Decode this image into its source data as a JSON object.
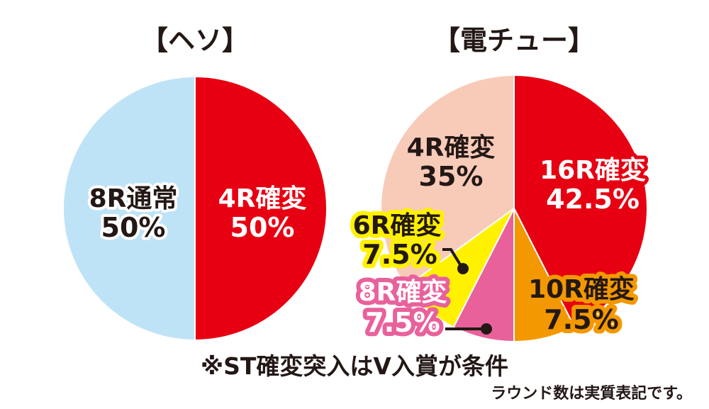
{
  "chart_data": [
    {
      "type": "pie",
      "title": "【ヘソ】",
      "slices": [
        {
          "label": "4R確変",
          "value": 50,
          "value_label": "50%",
          "color": "#e60012",
          "text_color": "#ffffff"
        },
        {
          "label": "8R通常",
          "value": 50,
          "value_label": "50%",
          "color": "#bfe3f6",
          "text_color": "#231815"
        }
      ]
    },
    {
      "type": "pie",
      "title": "【電チュー】",
      "slices": [
        {
          "label": "16R確変",
          "value": 42.5,
          "value_label": "42.5%",
          "color": "#e60012",
          "text_color": "#ffffff"
        },
        {
          "label": "10R確変",
          "value": 7.5,
          "value_label": "7.5%",
          "color": "#f39800",
          "text_color": "#231815"
        },
        {
          "label": "8R確変",
          "value": 7.5,
          "value_label": "7.5%",
          "color": "#e9619b",
          "text_color": "#ffffff"
        },
        {
          "label": "6R確変",
          "value": 7.5,
          "value_label": "7.5%",
          "color": "#fff100",
          "text_color": "#231815"
        },
        {
          "label": "4R確変",
          "value": 35,
          "value_label": "35%",
          "color": "#f8cbb9",
          "text_color": "#231815"
        }
      ]
    }
  ],
  "footnote": "※ST確変突入はV入賞が条件",
  "footnote2": "ラウンド数は実質表記です。"
}
